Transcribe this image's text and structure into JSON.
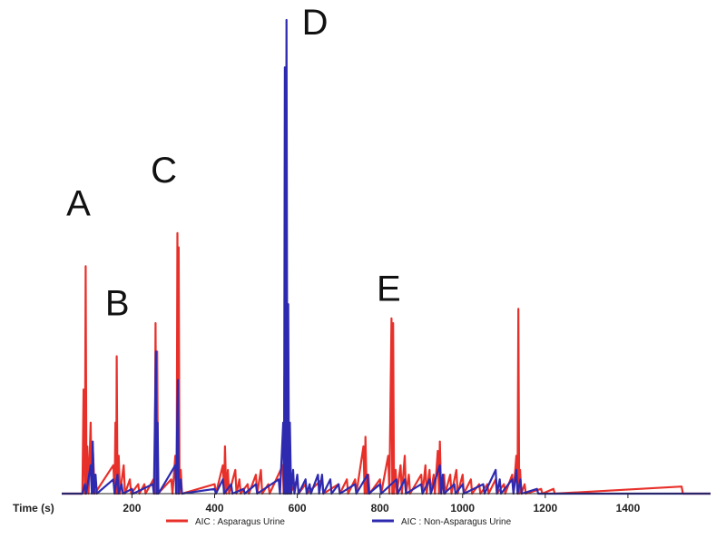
{
  "chart_data": {
    "type": "line",
    "xlabel": "Time (s)",
    "xlim": [
      30,
      1600
    ],
    "ylim": [
      0,
      100
    ],
    "x_ticks": [
      200,
      400,
      600,
      800,
      1000,
      1200,
      1400
    ],
    "legend_position": "bottom",
    "annotations": [
      {
        "label": "A",
        "x": 88,
        "y": 56
      },
      {
        "label": "B",
        "x": 160,
        "y": 35
      },
      {
        "label": "C",
        "x": 308,
        "y": 63
      },
      {
        "label": "D",
        "x": 577,
        "y": 100
      },
      {
        "label": "E",
        "x": 830,
        "y": 38
      }
    ],
    "series": [
      {
        "name": "AIC : Asparagus Urine",
        "color": "#e8302a",
        "points": [
          [
            30,
            0
          ],
          [
            80,
            0
          ],
          [
            83,
            22
          ],
          [
            86,
            0
          ],
          [
            88,
            48
          ],
          [
            90,
            0
          ],
          [
            92,
            10
          ],
          [
            95,
            0
          ],
          [
            100,
            15
          ],
          [
            103,
            0
          ],
          [
            105,
            10
          ],
          [
            110,
            0
          ],
          [
            155,
            6
          ],
          [
            158,
            0
          ],
          [
            160,
            15
          ],
          [
            162,
            0
          ],
          [
            163,
            29
          ],
          [
            165,
            0
          ],
          [
            168,
            8
          ],
          [
            171,
            0
          ],
          [
            180,
            6
          ],
          [
            183,
            0
          ],
          [
            195,
            3
          ],
          [
            198,
            0
          ],
          [
            215,
            2
          ],
          [
            218,
            0
          ],
          [
            230,
            2
          ],
          [
            233,
            0
          ],
          [
            252,
            3
          ],
          [
            255,
            0
          ],
          [
            257,
            36
          ],
          [
            259,
            0
          ],
          [
            261,
            30
          ],
          [
            263,
            0
          ],
          [
            295,
            3
          ],
          [
            298,
            0
          ],
          [
            305,
            8
          ],
          [
            308,
            0
          ],
          [
            310,
            55
          ],
          [
            312,
            0
          ],
          [
            313,
            52
          ],
          [
            315,
            0
          ],
          [
            318,
            5
          ],
          [
            321,
            0
          ],
          [
            400,
            2
          ],
          [
            403,
            0
          ],
          [
            420,
            6
          ],
          [
            423,
            0
          ],
          [
            425,
            10
          ],
          [
            428,
            0
          ],
          [
            432,
            5
          ],
          [
            435,
            0
          ],
          [
            450,
            5
          ],
          [
            453,
            0
          ],
          [
            460,
            3
          ],
          [
            463,
            0
          ],
          [
            480,
            2
          ],
          [
            483,
            0
          ],
          [
            500,
            4
          ],
          [
            503,
            0
          ],
          [
            512,
            5
          ],
          [
            515,
            0
          ],
          [
            530,
            2
          ],
          [
            533,
            0
          ],
          [
            565,
            6
          ],
          [
            567,
            0
          ],
          [
            569,
            25
          ],
          [
            571,
            0
          ],
          [
            573,
            15
          ],
          [
            575,
            0
          ],
          [
            580,
            5
          ],
          [
            583,
            0
          ],
          [
            600,
            3
          ],
          [
            603,
            0
          ],
          [
            620,
            2
          ],
          [
            623,
            0
          ],
          [
            660,
            3
          ],
          [
            663,
            0
          ],
          [
            700,
            2
          ],
          [
            703,
            0
          ],
          [
            720,
            3
          ],
          [
            723,
            0
          ],
          [
            740,
            3
          ],
          [
            743,
            0
          ],
          [
            760,
            10
          ],
          [
            763,
            0
          ],
          [
            765,
            12
          ],
          [
            768,
            0
          ],
          [
            772,
            4
          ],
          [
            775,
            0
          ],
          [
            800,
            3
          ],
          [
            803,
            0
          ],
          [
            820,
            8
          ],
          [
            823,
            0
          ],
          [
            828,
            37
          ],
          [
            830,
            0
          ],
          [
            832,
            36
          ],
          [
            834,
            0
          ],
          [
            838,
            5
          ],
          [
            841,
            0
          ],
          [
            850,
            6
          ],
          [
            853,
            0
          ],
          [
            860,
            8
          ],
          [
            863,
            0
          ],
          [
            870,
            4
          ],
          [
            873,
            0
          ],
          [
            900,
            4
          ],
          [
            903,
            0
          ],
          [
            910,
            6
          ],
          [
            913,
            0
          ],
          [
            920,
            5
          ],
          [
            923,
            0
          ],
          [
            930,
            4
          ],
          [
            933,
            0
          ],
          [
            940,
            9
          ],
          [
            943,
            0
          ],
          [
            945,
            11
          ],
          [
            948,
            0
          ],
          [
            955,
            4
          ],
          [
            958,
            0
          ],
          [
            970,
            4
          ],
          [
            973,
            0
          ],
          [
            985,
            5
          ],
          [
            988,
            0
          ],
          [
            1000,
            4
          ],
          [
            1003,
            0
          ],
          [
            1020,
            3
          ],
          [
            1023,
            0
          ],
          [
            1040,
            2
          ],
          [
            1043,
            0
          ],
          [
            1060,
            2
          ],
          [
            1063,
            0
          ],
          [
            1080,
            3
          ],
          [
            1083,
            0
          ],
          [
            1100,
            2
          ],
          [
            1103,
            0
          ],
          [
            1120,
            4
          ],
          [
            1123,
            0
          ],
          [
            1130,
            8
          ],
          [
            1133,
            0
          ],
          [
            1135,
            39
          ],
          [
            1137,
            0
          ],
          [
            1139,
            5
          ],
          [
            1142,
            0
          ],
          [
            1150,
            2
          ],
          [
            1153,
            0
          ],
          [
            1190,
            1
          ],
          [
            1193,
            0
          ],
          [
            1220,
            1
          ],
          [
            1223,
            0
          ],
          [
            1530,
            1.5
          ],
          [
            1533,
            0
          ],
          [
            1600,
            0
          ]
        ]
      },
      {
        "name": "AIC : Non-Asparagus Urine",
        "color": "#2d2ab0",
        "points": [
          [
            30,
            0
          ],
          [
            80,
            0
          ],
          [
            86,
            2
          ],
          [
            89,
            0
          ],
          [
            100,
            6
          ],
          [
            103,
            0
          ],
          [
            105,
            11
          ],
          [
            108,
            0
          ],
          [
            112,
            4
          ],
          [
            115,
            0
          ],
          [
            155,
            3
          ],
          [
            158,
            0
          ],
          [
            165,
            4
          ],
          [
            168,
            0
          ],
          [
            175,
            2
          ],
          [
            178,
            0
          ],
          [
            200,
            1
          ],
          [
            203,
            0
          ],
          [
            250,
            2
          ],
          [
            253,
            0
          ],
          [
            258,
            30
          ],
          [
            260,
            0
          ],
          [
            262,
            15
          ],
          [
            264,
            0
          ],
          [
            305,
            6
          ],
          [
            307,
            0
          ],
          [
            311,
            24
          ],
          [
            313,
            0
          ],
          [
            318,
            3
          ],
          [
            321,
            0
          ],
          [
            400,
            1
          ],
          [
            403,
            0
          ],
          [
            420,
            3
          ],
          [
            423,
            0
          ],
          [
            440,
            2
          ],
          [
            443,
            0
          ],
          [
            470,
            1
          ],
          [
            473,
            0
          ],
          [
            500,
            2
          ],
          [
            503,
            0
          ],
          [
            555,
            3
          ],
          [
            558,
            0
          ],
          [
            566,
            15
          ],
          [
            568,
            0
          ],
          [
            570,
            90
          ],
          [
            572,
            0
          ],
          [
            574,
            100
          ],
          [
            576,
            0
          ],
          [
            578,
            40
          ],
          [
            580,
            0
          ],
          [
            582,
            15
          ],
          [
            585,
            0
          ],
          [
            590,
            5
          ],
          [
            593,
            0
          ],
          [
            600,
            4
          ],
          [
            603,
            0
          ],
          [
            620,
            3
          ],
          [
            623,
            0
          ],
          [
            630,
            2
          ],
          [
            633,
            0
          ],
          [
            650,
            4
          ],
          [
            653,
            0
          ],
          [
            660,
            4
          ],
          [
            663,
            0
          ],
          [
            680,
            3
          ],
          [
            683,
            0
          ],
          [
            700,
            2
          ],
          [
            703,
            0
          ],
          [
            740,
            2
          ],
          [
            743,
            0
          ],
          [
            770,
            4
          ],
          [
            773,
            0
          ],
          [
            800,
            2
          ],
          [
            803,
            0
          ],
          [
            840,
            3
          ],
          [
            843,
            0
          ],
          [
            860,
            3
          ],
          [
            863,
            0
          ],
          [
            900,
            2
          ],
          [
            903,
            0
          ],
          [
            920,
            3
          ],
          [
            923,
            0
          ],
          [
            945,
            6
          ],
          [
            948,
            0
          ],
          [
            952,
            4
          ],
          [
            955,
            0
          ],
          [
            980,
            2
          ],
          [
            983,
            0
          ],
          [
            1000,
            2
          ],
          [
            1003,
            0
          ],
          [
            1050,
            2
          ],
          [
            1053,
            0
          ],
          [
            1080,
            5
          ],
          [
            1083,
            0
          ],
          [
            1090,
            3
          ],
          [
            1093,
            0
          ],
          [
            1120,
            3
          ],
          [
            1123,
            0
          ],
          [
            1130,
            5
          ],
          [
            1133,
            0
          ],
          [
            1140,
            3
          ],
          [
            1143,
            0
          ],
          [
            1180,
            1
          ],
          [
            1183,
            0
          ],
          [
            1600,
            0
          ]
        ]
      }
    ]
  }
}
